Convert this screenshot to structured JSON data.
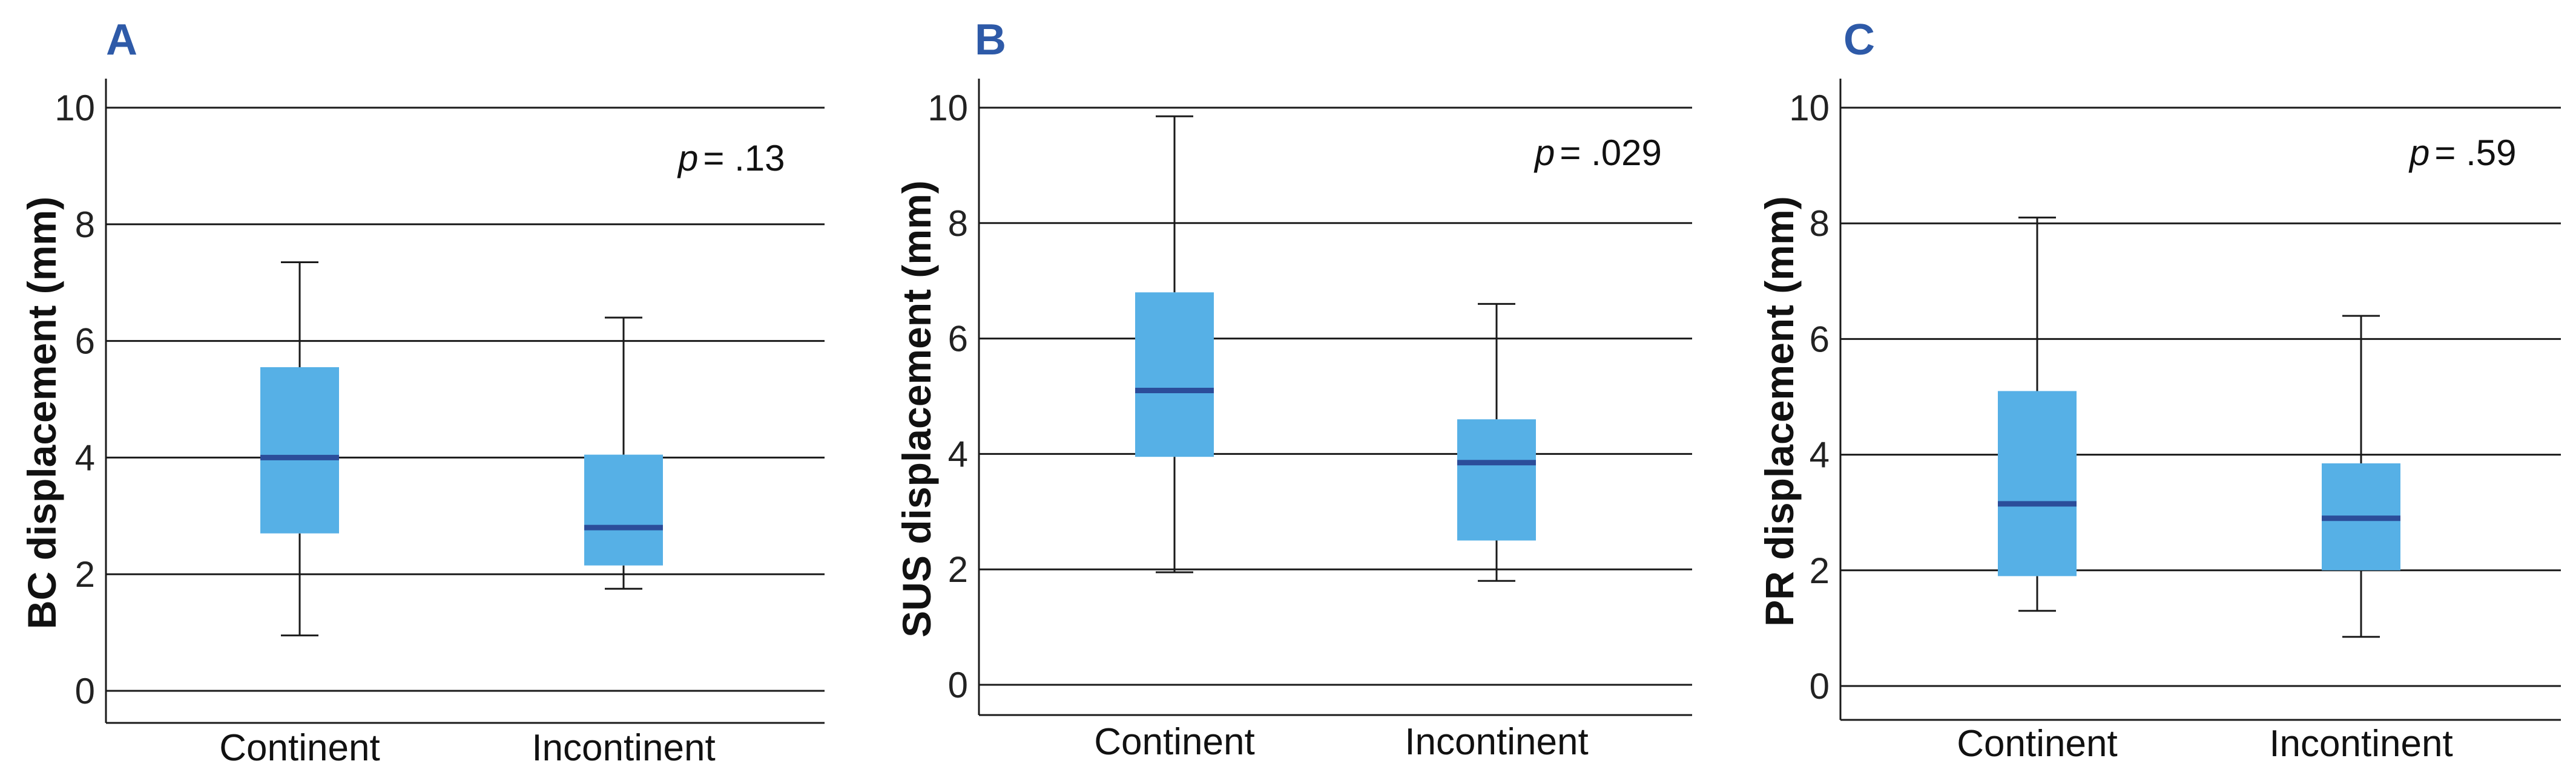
{
  "chart_data": [
    {
      "panel": "A",
      "type": "box",
      "ylabel": "BC displacement (mm)",
      "ylim": [
        0,
        10
      ],
      "yticks": [
        0,
        2,
        4,
        6,
        8,
        10
      ],
      "grid": true,
      "categories": [
        "Continent",
        "Incontinent"
      ],
      "boxes": [
        {
          "category": "Continent",
          "min": 0.95,
          "q1": 2.7,
          "median": 4.0,
          "q3": 5.55,
          "max": 7.35
        },
        {
          "category": "Incontinent",
          "min": 1.75,
          "q1": 2.15,
          "median": 2.8,
          "q3": 4.05,
          "max": 6.4
        }
      ],
      "annotation": {
        "p_label": "p",
        "p_value": "= .13"
      }
    },
    {
      "panel": "B",
      "type": "box",
      "ylabel": "SUS displacement (mm)",
      "ylim": [
        0,
        10
      ],
      "yticks": [
        0,
        2,
        4,
        6,
        8,
        10
      ],
      "grid": true,
      "categories": [
        "Continent",
        "Incontinent"
      ],
      "boxes": [
        {
          "category": "Continent",
          "min": 1.95,
          "q1": 3.95,
          "median": 5.1,
          "q3": 6.8,
          "max": 9.85
        },
        {
          "category": "Incontinent",
          "min": 1.8,
          "q1": 2.5,
          "median": 3.85,
          "q3": 4.6,
          "max": 6.6
        }
      ],
      "annotation": {
        "p_label": "p",
        "p_value": "= .029"
      }
    },
    {
      "panel": "C",
      "type": "box",
      "ylabel": "PR displacement (mm)",
      "ylim": [
        0,
        10
      ],
      "yticks": [
        0,
        2,
        4,
        6,
        8,
        10
      ],
      "grid": true,
      "categories": [
        "Continent",
        "Incontinent"
      ],
      "boxes": [
        {
          "category": "Continent",
          "min": 1.3,
          "q1": 1.9,
          "median": 3.15,
          "q3": 5.1,
          "max": 8.1
        },
        {
          "category": "Incontinent",
          "min": 0.85,
          "q1": 2.0,
          "median": 2.9,
          "q3": 3.85,
          "max": 6.4
        }
      ],
      "annotation": {
        "p_label": "p",
        "p_value": "= .59"
      }
    }
  ],
  "colors": {
    "box_fill": "#56b0e6",
    "median": "#2b4d9a",
    "panel_letter": "#2e5aa8",
    "grid": "#1a1a1a",
    "whisker": "#1a1a1a"
  }
}
